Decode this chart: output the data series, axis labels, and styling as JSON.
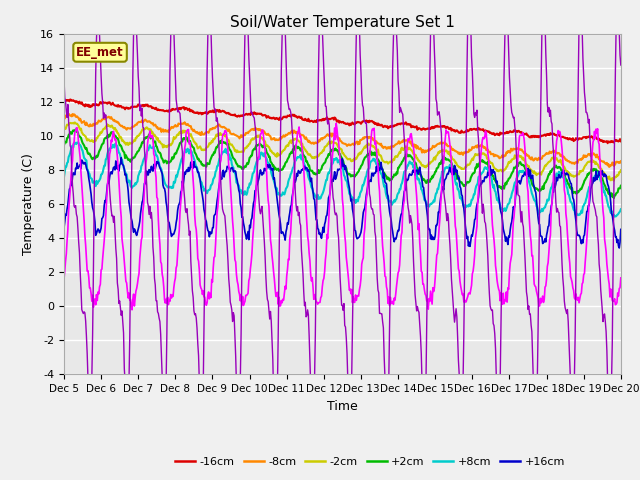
{
  "title": "Soil/Water Temperature Set 1",
  "xlabel": "Time",
  "ylabel": "Temperature (C)",
  "ylim": [
    -4,
    16
  ],
  "xlim": [
    0,
    360
  ],
  "annotation": "EE_met",
  "fig_facecolor": "#f0f0f0",
  "ax_facecolor": "#e8e8e8",
  "series_colors": {
    "-16cm": "#dd0000",
    "-8cm": "#ff8800",
    "-2cm": "#cccc00",
    "+2cm": "#00bb00",
    "+8cm": "#00cccc",
    "+16cm": "#0000cc",
    "+32cm": "#ff00ff",
    "+64cm": "#9900bb"
  },
  "xtick_labels": [
    "Dec 5",
    "Dec 6",
    "Dec 7",
    "Dec 8",
    "Dec 9",
    "Dec 10",
    "Dec 11",
    "Dec 12",
    "Dec 13",
    "Dec 14",
    "Dec 15",
    "Dec 16",
    "Dec 17",
    "Dec 18",
    "Dec 19",
    "Dec 20"
  ],
  "xtick_positions": [
    0,
    24,
    48,
    72,
    96,
    120,
    144,
    168,
    192,
    216,
    240,
    264,
    288,
    312,
    336,
    360
  ],
  "yticks": [
    -4,
    -2,
    0,
    2,
    4,
    6,
    8,
    10,
    12,
    14,
    16
  ]
}
